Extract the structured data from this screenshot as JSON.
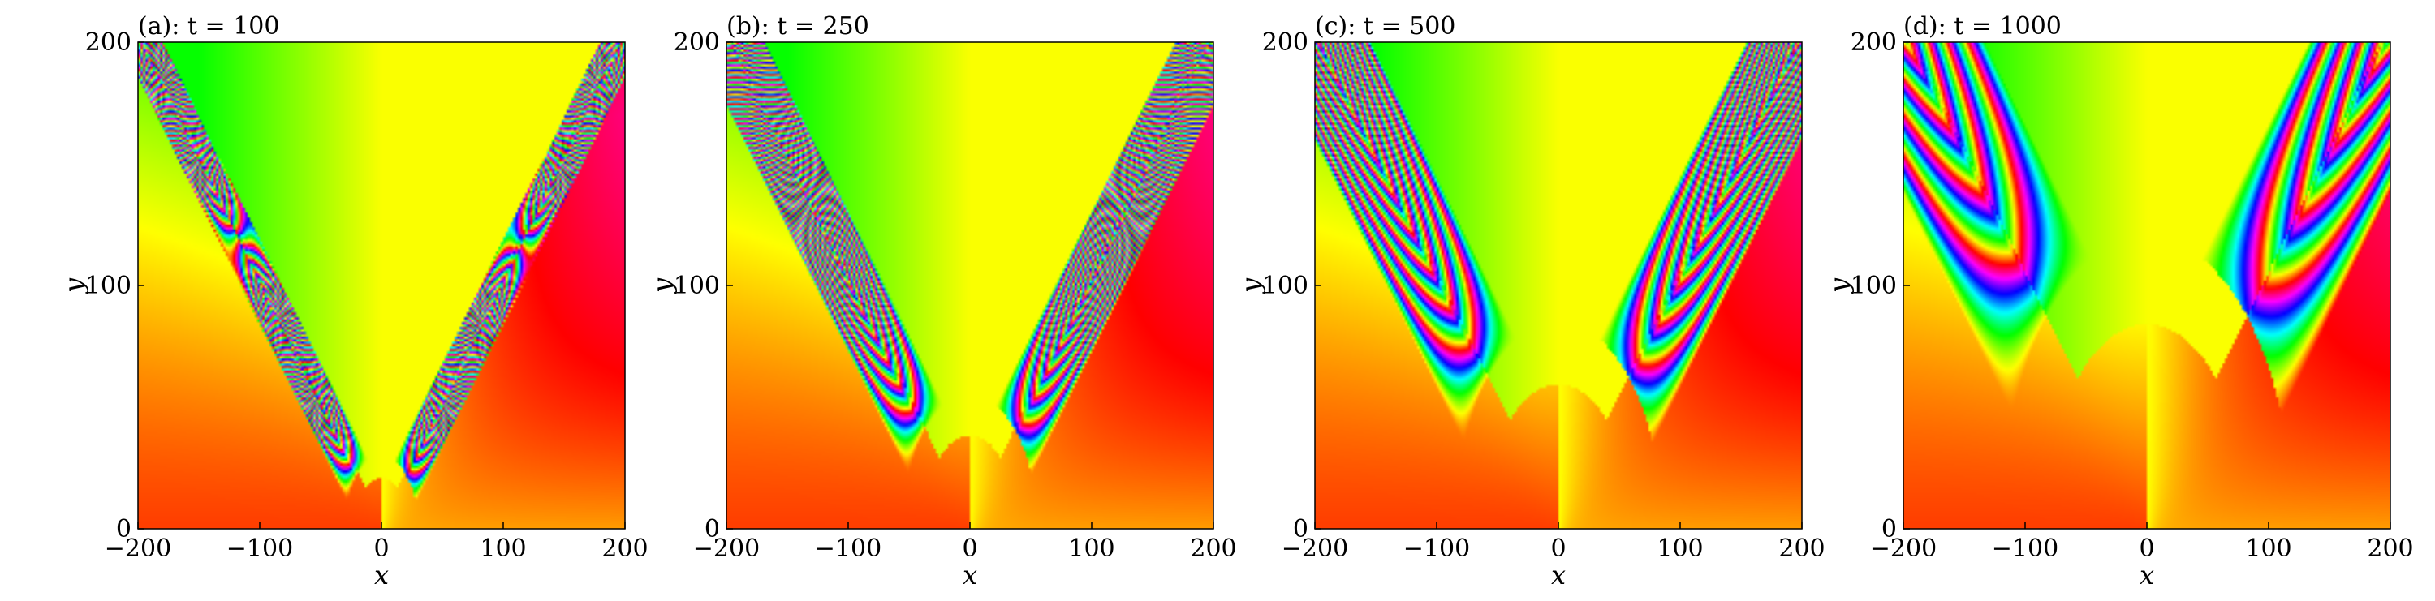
{
  "chart_data": [
    {
      "type": "heatmap",
      "title": "(a): t = 100",
      "xlabel": "x",
      "ylabel": "y",
      "xlim": [
        -200,
        200
      ],
      "ylim": [
        0,
        200
      ],
      "xticks": [
        "−200",
        "−100",
        "0",
        "100",
        "200"
      ],
      "yticks": [
        "0",
        "100",
        "200"
      ],
      "colormap": "hsv phase",
      "pattern": {
        "t": 100,
        "wedge_half_angle_deg": 44,
        "wavelength": 8,
        "front_start_x": 30,
        "front_width": 12
      }
    },
    {
      "type": "heatmap",
      "title": "(b): t = 250",
      "xlabel": "x",
      "ylabel": "y",
      "xlim": [
        -200,
        200
      ],
      "ylim": [
        0,
        200
      ],
      "xticks": [
        "−200",
        "−100",
        "0",
        "100",
        "200"
      ],
      "yticks": [
        "0",
        "100",
        "200"
      ],
      "colormap": "hsv phase",
      "pattern": {
        "t": 250,
        "wedge_half_angle_deg": 44,
        "wavelength": 14,
        "front_start_x": 55,
        "front_width": 20
      }
    },
    {
      "type": "heatmap",
      "title": "(c): t = 500",
      "xlabel": "x",
      "ylabel": "y",
      "xlim": [
        -200,
        200
      ],
      "ylim": [
        0,
        200
      ],
      "xticks": [
        "−200",
        "−100",
        "0",
        "100",
        "200"
      ],
      "yticks": [
        "0",
        "100",
        "200"
      ],
      "colormap": "hsv phase",
      "pattern": {
        "t": 500,
        "wedge_half_angle_deg": 44,
        "wavelength": 22,
        "front_start_x": 85,
        "front_width": 30
      }
    },
    {
      "type": "heatmap",
      "title": "(d): t = 1000",
      "xlabel": "x",
      "ylabel": "y",
      "xlim": [
        -200,
        200
      ],
      "ylim": [
        0,
        200
      ],
      "xticks": [
        "−200",
        "−100",
        "0",
        "100",
        "200"
      ],
      "yticks": [
        "0",
        "100",
        "200"
      ],
      "colormap": "hsv phase",
      "pattern": {
        "t": 1000,
        "wedge_half_angle_deg": 44,
        "wavelength": 40,
        "front_start_x": 120,
        "front_width": 45
      }
    }
  ]
}
